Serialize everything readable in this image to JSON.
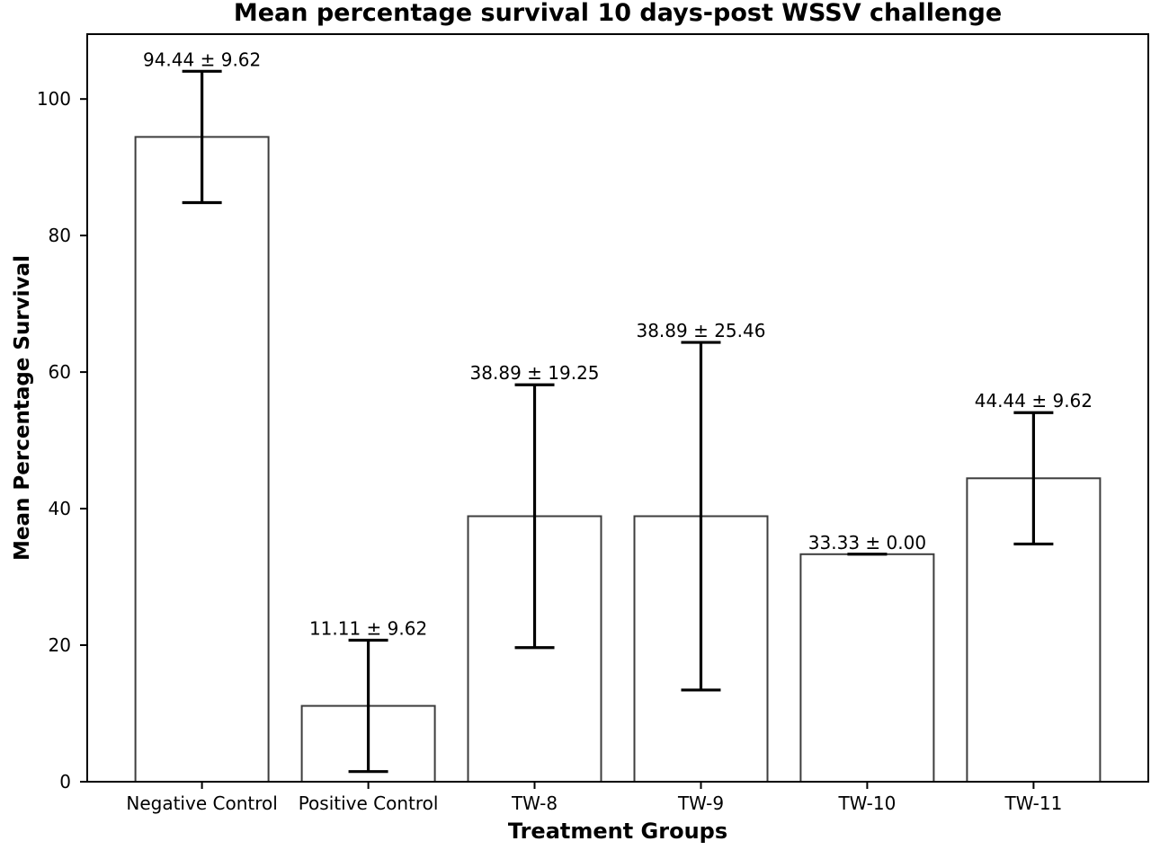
{
  "chart_data": {
    "type": "bar",
    "title": "Mean percentage survival 10 days-post WSSV challenge",
    "xlabel": "Treatment Groups",
    "ylabel": "Mean Percentage Survival",
    "categories": [
      "Negative Control",
      "Positive Control",
      "TW-8",
      "TW-9",
      "TW-10",
      "TW-11"
    ],
    "series": [
      {
        "name": "Mean percentage survival",
        "values": [
          94.44,
          11.11,
          38.89,
          38.89,
          33.33,
          44.44
        ],
        "errors": [
          9.62,
          9.62,
          19.25,
          25.46,
          0.0,
          9.62
        ]
      }
    ],
    "bar_annotations": [
      "94.44 ± 9.62",
      "11.11 ± 9.62",
      "38.89 ± 19.25",
      "38.89 ± 25.46",
      "33.33 ± 0.00",
      "44.44 ± 9.62"
    ],
    "yticks": [
      0,
      20,
      40,
      60,
      80,
      100
    ],
    "ytick_labels": [
      "0",
      "20",
      "40",
      "60",
      "80",
      "100"
    ],
    "ylim": [
      0,
      109.5
    ],
    "xlim": [
      -0.69,
      5.69
    ],
    "bar_width_units": 0.8,
    "grid": false,
    "legend": "none",
    "colors": {
      "background": "#ffffff",
      "bar_fill": "#ffffff",
      "bar_edge": "#3d3d3d",
      "error_bar": "#000000",
      "axis": "#000000",
      "text": "#000000"
    }
  }
}
